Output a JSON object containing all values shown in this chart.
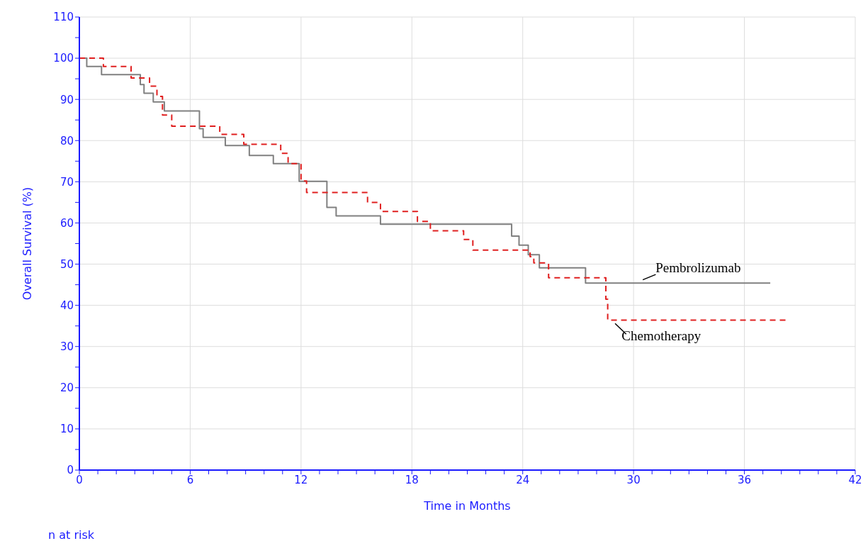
{
  "chart_data": {
    "type": "step",
    "xlabel": "Time in Months",
    "ylabel": "Overall Survival (%)",
    "annotations": [
      "n at risk"
    ],
    "xlim": [
      0,
      42
    ],
    "xticks": [
      0,
      {
        "value": 1,
        "label": null
      },
      {
        "value": 2,
        "label": null
      },
      {
        "value": 3,
        "label": null
      },
      {
        "value": 4,
        "label": null
      },
      {
        "value": 5,
        "label": null
      },
      6,
      {
        "value": 7,
        "label": null
      },
      {
        "value": 8,
        "label": null
      },
      {
        "value": 9,
        "label": null
      },
      {
        "value": 10,
        "label": null
      },
      {
        "value": 11,
        "label": null
      },
      12,
      {
        "value": 13,
        "label": null
      },
      {
        "value": 14,
        "label": null
      },
      {
        "value": 15,
        "label": null
      },
      {
        "value": 16,
        "label": null
      },
      {
        "value": 17,
        "label": null
      },
      18,
      {
        "value": 19,
        "label": null
      },
      {
        "value": 20,
        "label": null
      },
      {
        "value": 21,
        "label": null
      },
      {
        "value": 22,
        "label": null
      },
      {
        "value": 23,
        "label": null
      },
      24,
      {
        "value": 25,
        "label": null
      },
      {
        "value": 26,
        "label": null
      },
      {
        "value": 27,
        "label": null
      },
      {
        "value": 28,
        "label": null
      },
      {
        "value": 29,
        "label": null
      },
      30,
      {
        "value": 31,
        "label": null
      },
      {
        "value": 32,
        "label": null
      },
      {
        "value": 33,
        "label": null
      },
      {
        "value": 34,
        "label": null
      },
      {
        "value": 35,
        "label": null
      },
      36,
      {
        "value": 37,
        "label": null
      },
      {
        "value": 38,
        "label": null
      },
      {
        "value": 39,
        "label": null
      },
      {
        "value": 40,
        "label": null
      },
      {
        "value": 41,
        "label": null
      },
      42
    ],
    "ylim": [
      0,
      110
    ],
    "yticks": [
      0,
      {
        "value": 5,
        "label": null
      },
      10,
      {
        "value": 15,
        "label": null
      },
      20,
      {
        "value": 25,
        "label": null
      },
      30,
      {
        "value": 35,
        "label": null
      },
      40,
      {
        "value": 45,
        "label": null
      },
      50,
      {
        "value": 55,
        "label": null
      },
      60,
      {
        "value": 65,
        "label": null
      },
      70,
      {
        "value": 75,
        "label": null
      },
      80,
      {
        "value": 85,
        "label": null
      },
      90,
      {
        "value": 95,
        "label": null
      },
      100,
      {
        "value": 105,
        "label": null
      },
      110
    ],
    "grid": true,
    "marker": "none",
    "series": [
      {
        "name": "Pembrolizumab",
        "color": "#808080",
        "line_style": "solid",
        "x": [
          0,
          0.4,
          1.2,
          3.3,
          3.5,
          4,
          4.6,
          6.5,
          6.7,
          7.9,
          9.2,
          10.5,
          11.9,
          13.4,
          13.9,
          16.3,
          23.4,
          23.8,
          24.3,
          24.9,
          27.4,
          37.4
        ],
        "values": [
          100,
          98,
          96,
          93.6,
          91.5,
          89.4,
          87.2,
          82.9,
          80.8,
          78.8,
          76.4,
          74.4,
          70.1,
          63.8,
          61.7,
          59.7,
          56.8,
          54.6,
          52.3,
          49.1,
          45.4,
          45.4
        ]
      },
      {
        "name": "Chemotherapy",
        "color": "#e02020",
        "line_style": "dashed",
        "x": [
          0,
          1.3,
          2.8,
          3.8,
          4.2,
          4.5,
          5,
          7.6,
          8.9,
          10.9,
          11.3,
          12,
          12.3,
          15.6,
          16.3,
          18.3,
          19,
          20.8,
          21.3,
          24.4,
          24.6,
          25.4,
          28.5,
          28.6,
          38.3
        ],
        "values": [
          100,
          98,
          95.2,
          93.2,
          90.7,
          86.2,
          83.5,
          81.5,
          79.1,
          76.9,
          74.4,
          70.2,
          67.4,
          65,
          62.8,
          60.4,
          58.1,
          56,
          53.4,
          51.8,
          50.3,
          46.7,
          41.5,
          36.4,
          36.4
        ]
      }
    ]
  }
}
